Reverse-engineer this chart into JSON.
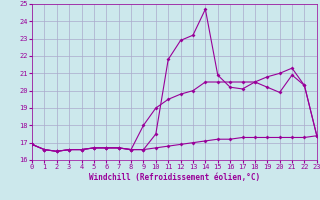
{
  "xlabel": "Windchill (Refroidissement éolien,°C)",
  "bg_color": "#cce8ec",
  "grid_color": "#aaaacc",
  "line_color": "#990099",
  "xlim": [
    0,
    23
  ],
  "ylim": [
    16,
    25
  ],
  "xticks": [
    0,
    1,
    2,
    3,
    4,
    5,
    6,
    7,
    8,
    9,
    10,
    11,
    12,
    13,
    14,
    15,
    16,
    17,
    18,
    19,
    20,
    21,
    22,
    23
  ],
  "yticks": [
    16,
    17,
    18,
    19,
    20,
    21,
    22,
    23,
    24,
    25
  ],
  "series1_x": [
    0,
    1,
    2,
    3,
    4,
    5,
    6,
    7,
    8,
    9,
    10,
    11,
    12,
    13,
    14,
    15,
    16,
    17,
    18,
    19,
    20,
    21,
    22,
    23
  ],
  "series1_y": [
    16.9,
    16.6,
    16.5,
    16.6,
    16.6,
    16.7,
    16.7,
    16.7,
    16.6,
    16.6,
    17.5,
    21.8,
    22.9,
    23.2,
    24.7,
    20.9,
    20.2,
    20.1,
    20.5,
    20.2,
    19.9,
    20.9,
    20.3,
    17.4
  ],
  "series2_x": [
    0,
    1,
    2,
    3,
    4,
    5,
    6,
    7,
    8,
    9,
    10,
    11,
    12,
    13,
    14,
    15,
    16,
    17,
    18,
    19,
    20,
    21,
    22,
    23
  ],
  "series2_y": [
    16.9,
    16.6,
    16.5,
    16.6,
    16.6,
    16.7,
    16.7,
    16.7,
    16.6,
    18.0,
    19.0,
    19.5,
    19.8,
    20.0,
    20.5,
    20.5,
    20.5,
    20.5,
    20.5,
    20.8,
    21.0,
    21.3,
    20.3,
    17.4
  ],
  "series3_x": [
    0,
    1,
    2,
    3,
    4,
    5,
    6,
    7,
    8,
    9,
    10,
    11,
    12,
    13,
    14,
    15,
    16,
    17,
    18,
    19,
    20,
    21,
    22,
    23
  ],
  "series3_y": [
    16.9,
    16.6,
    16.5,
    16.6,
    16.6,
    16.7,
    16.7,
    16.7,
    16.6,
    16.6,
    16.7,
    16.8,
    16.9,
    17.0,
    17.1,
    17.2,
    17.2,
    17.3,
    17.3,
    17.3,
    17.3,
    17.3,
    17.3,
    17.4
  ]
}
